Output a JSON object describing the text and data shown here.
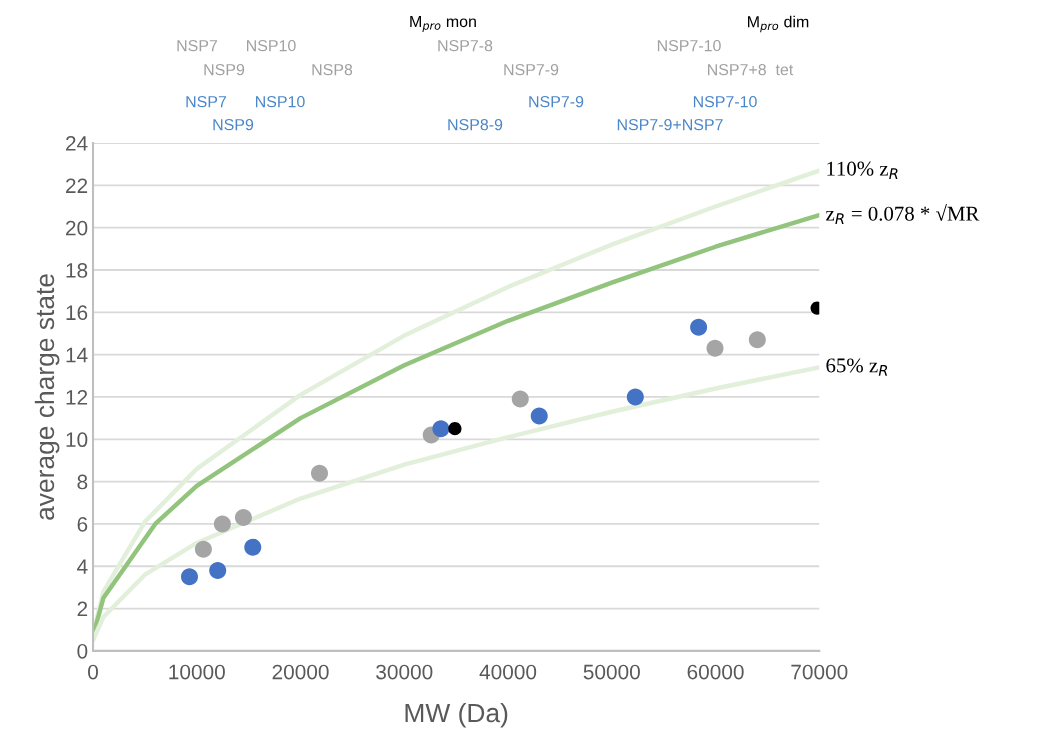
{
  "chart_data": {
    "type": "scatter",
    "xlabel": "MW (Da)",
    "ylabel": "average charge state",
    "xlim": [
      0,
      70000
    ],
    "xticks": [
      0,
      10000,
      20000,
      30000,
      40000,
      50000,
      60000,
      70000
    ],
    "ylim": [
      0,
      24
    ],
    "yticks": [
      0,
      2,
      4,
      6,
      8,
      10,
      12,
      14,
      16,
      18,
      20,
      22,
      24
    ],
    "grid": "y",
    "legend": false,
    "marker": "circle",
    "series": [
      {
        "type": "line",
        "marker": "none",
        "name": "110% z$_{R}$",
        "color": "#e2efda",
        "x": [
          0,
          1000,
          5000,
          10000,
          20000,
          30000,
          40000,
          50000,
          60000,
          70000
        ],
        "values": [
          0.8,
          2.8,
          6.1,
          8.6,
          12.1,
          14.9,
          17.2,
          19.2,
          21.0,
          22.7
        ]
      },
      {
        "type": "line",
        "marker": "none",
        "name": "z$_{R}$ = 0.078 * √MR",
        "color": "#92c47d",
        "x": [
          0,
          1000,
          6000,
          10000,
          20000,
          30000,
          40000,
          50000,
          60000,
          70000
        ],
        "values": [
          0.7,
          2.5,
          6.0,
          7.8,
          11.0,
          13.5,
          15.6,
          17.4,
          19.1,
          20.6
        ]
      },
      {
        "type": "line",
        "marker": "none",
        "name": "65% z$_{R}$",
        "color": "#e2efda",
        "x": [
          0,
          1000,
          5000,
          10000,
          20000,
          30000,
          40000,
          50000,
          60000,
          70000
        ],
        "values": [
          0.5,
          1.6,
          3.6,
          5.1,
          7.2,
          8.8,
          10.1,
          11.3,
          12.4,
          13.4
        ]
      },
      {
        "color": "#a5a5a5",
        "x": [
          10640,
          12470,
          14500,
          21830,
          32600,
          41180,
          59950,
          64030
        ],
        "values": [
          4.8,
          6.0,
          6.3,
          8.4,
          10.2,
          11.9,
          14.3,
          14.7
        ]
      },
      {
        "color": "#4472c4",
        "x": [
          9300,
          12020,
          15400,
          33530,
          43010,
          52270,
          58370
        ],
        "values": [
          3.5,
          3.8,
          4.9,
          10.5,
          11.1,
          12.0,
          15.3
        ]
      },
      {
        "color": "#000000",
        "x": [
          34880,
          69790
        ],
        "values": [
          10.5,
          16.2
        ]
      }
    ],
    "annotations": [
      "M$_{pro}$ mon",
      "M$_{pro}$ dim",
      "NSP7",
      "NSP10",
      "NSP7-8",
      "NSP7-10",
      "NSP9",
      "NSP8",
      "NSP7-9",
      "NSP7+8  tet",
      "NSP7",
      "NSP10",
      "NSP7-9",
      "NSP7-10",
      "NSP9",
      "NSP8-9",
      "NSP7-9+NSP7"
    ]
  }
}
